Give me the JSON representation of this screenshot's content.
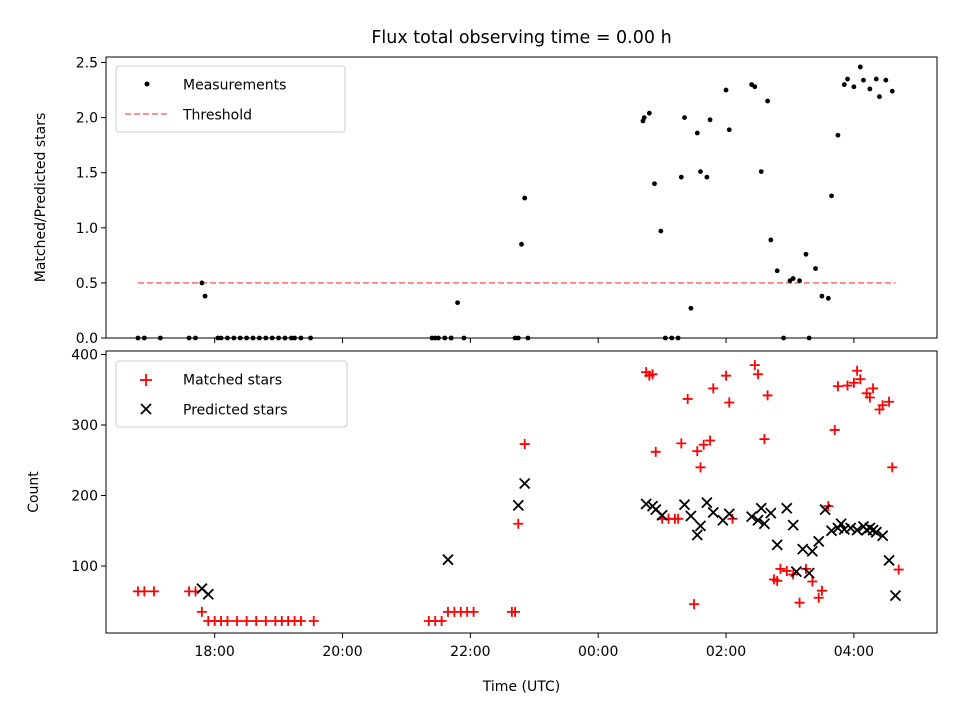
{
  "title": "Flux total observing time = 0.00 h",
  "chart_data": [
    {
      "type": "scatter",
      "ylabel": "Matched/Predicted stars",
      "x_unit": "hours since 00:00 UTC",
      "xlim": [
        -7.7,
        5.3
      ],
      "ylim": [
        0,
        2.55
      ],
      "yticks": [
        "0.0",
        "0.5",
        "1.0",
        "1.5",
        "2.0",
        "2.5"
      ],
      "legend": {
        "position": "top-left",
        "items": [
          {
            "label": "Measurements",
            "key": "measurements"
          },
          {
            "label": "Threshold",
            "key": "threshold"
          }
        ]
      },
      "threshold": {
        "y": 0.5,
        "x_range": [
          -7.2,
          4.65
        ],
        "color": "#ff8080"
      },
      "measurements": {
        "color": "#000000",
        "x": [
          -7.2,
          -7.1,
          -6.85,
          -6.4,
          -6.3,
          -6.2,
          -6.15,
          -5.95,
          -5.9,
          -5.8,
          -5.7,
          -5.6,
          -5.5,
          -5.4,
          -5.3,
          -5.2,
          -5.1,
          -5.0,
          -4.9,
          -4.8,
          -4.75,
          -4.65,
          -4.5,
          -2.6,
          -2.55,
          -2.5,
          -2.4,
          -2.3,
          -2.2,
          -2.1,
          -2.3,
          -1.3,
          -1.25,
          -1.2,
          -1.15,
          -1.1,
          0.7,
          0.72,
          0.8,
          0.88,
          0.98,
          1.05,
          1.15,
          1.25,
          1.3,
          1.35,
          1.45,
          1.55,
          1.6,
          1.7,
          1.75,
          2.0,
          2.05,
          2.4,
          2.45,
          2.55,
          2.65,
          2.7,
          2.8,
          2.9,
          3.0,
          3.05,
          3.15,
          3.25,
          3.3,
          3.4,
          3.5,
          3.6,
          3.65,
          3.75,
          3.85,
          3.9,
          4.0,
          4.1,
          4.15,
          4.25,
          4.35,
          4.4,
          4.5,
          4.6
        ],
        "y": [
          0,
          0,
          0,
          0,
          0,
          0.5,
          0.38,
          0,
          0,
          0,
          0,
          0,
          0,
          0,
          0,
          0,
          0,
          0,
          0,
          0,
          0,
          0,
          0,
          0,
          0,
          0,
          0,
          0,
          0.32,
          0,
          0,
          0,
          0,
          0.85,
          1.27,
          0,
          1.97,
          2.0,
          2.04,
          1.4,
          0.97,
          0,
          0,
          0,
          1.46,
          2.0,
          0.27,
          1.86,
          1.51,
          1.46,
          1.98,
          2.25,
          1.89,
          2.3,
          2.28,
          1.51,
          2.15,
          0.89,
          0.61,
          0,
          0.52,
          0.54,
          0.52,
          0.76,
          0,
          0.63,
          0.38,
          0.36,
          1.29,
          1.84,
          2.3,
          2.35,
          2.28,
          2.46,
          2.34,
          2.26,
          2.35,
          2.19,
          2.34,
          2.24
        ]
      }
    },
    {
      "type": "scatter",
      "xlabel": "Time (UTC)",
      "ylabel": "Count",
      "x_unit": "hours since 00:00 UTC",
      "xlim": [
        -7.7,
        5.3
      ],
      "ylim": [
        5,
        405
      ],
      "yticks": [
        "100",
        "200",
        "300",
        "400"
      ],
      "xticks": [
        "18:00",
        "20:00",
        "22:00",
        "00:00",
        "02:00",
        "04:00"
      ],
      "xtick_hours": [
        -6,
        -4,
        -2,
        0,
        2,
        4
      ],
      "legend": {
        "position": "top-left",
        "items": [
          {
            "label": "Matched stars",
            "key": "matched"
          },
          {
            "label": "Predicted stars",
            "key": "predicted"
          }
        ]
      },
      "matched": {
        "color": "#ff0000",
        "x": [
          -7.2,
          -7.1,
          -6.95,
          -6.4,
          -6.3,
          -6.2,
          -6.1,
          -6.0,
          -5.9,
          -5.8,
          -5.65,
          -5.5,
          -5.35,
          -5.2,
          -5.05,
          -4.95,
          -4.85,
          -4.75,
          -4.65,
          -4.45,
          -2.65,
          -2.55,
          -2.45,
          -2.35,
          -2.25,
          -2.15,
          -2.05,
          -1.95,
          -1.35,
          -1.3,
          -1.25,
          -1.15,
          0.75,
          0.8,
          0.85,
          0.9,
          1.0,
          1.1,
          1.2,
          1.25,
          1.3,
          1.4,
          1.5,
          1.55,
          1.6,
          1.65,
          1.75,
          1.8,
          2.0,
          2.05,
          2.1,
          2.45,
          2.5,
          2.6,
          2.65,
          2.75,
          2.8,
          2.85,
          2.95,
          3.05,
          3.15,
          3.25,
          3.35,
          3.45,
          3.5,
          3.6,
          3.7,
          3.75,
          3.9,
          4.0,
          4.05,
          4.1,
          4.2,
          4.25,
          4.3,
          4.4,
          4.45,
          4.55,
          4.6,
          4.7
        ],
        "y": [
          64,
          64,
          64,
          64,
          64,
          35,
          22,
          22,
          22,
          22,
          22,
          22,
          22,
          22,
          22,
          22,
          22,
          22,
          22,
          22,
          22,
          22,
          22,
          35,
          35,
          35,
          35,
          35,
          35,
          35,
          160,
          273,
          375,
          370,
          372,
          262,
          167,
          167,
          167,
          167,
          274,
          337,
          46,
          263,
          240,
          272,
          278,
          352,
          370,
          332,
          167,
          385,
          372,
          280,
          342,
          81,
          79,
          96,
          93,
          88,
          48,
          96,
          78,
          55,
          65,
          185,
          293,
          355,
          356,
          360,
          377,
          365,
          345,
          339,
          352,
          322,
          328,
          333,
          240,
          95
        ]
      },
      "predicted": {
        "color": "#000000",
        "x": [
          -6.2,
          -6.1,
          -2.35,
          -1.25,
          -1.15,
          0.75,
          0.85,
          0.9,
          1.0,
          1.35,
          1.45,
          1.55,
          1.6,
          1.7,
          1.8,
          1.95,
          2.05,
          2.4,
          2.5,
          2.55,
          2.6,
          2.7,
          2.8,
          2.95,
          3.05,
          3.1,
          3.2,
          3.3,
          3.35,
          3.45,
          3.55,
          3.65,
          3.75,
          3.8,
          3.85,
          3.95,
          4.05,
          4.15,
          4.2,
          4.25,
          4.3,
          4.35,
          4.45,
          4.55,
          4.65
        ],
        "y": [
          68,
          60,
          109,
          186,
          217,
          188,
          185,
          180,
          172,
          187,
          171,
          144,
          157,
          190,
          176,
          165,
          174,
          170,
          165,
          182,
          160,
          175,
          130,
          182,
          158,
          92,
          124,
          90,
          121,
          135,
          180,
          150,
          154,
          160,
          152,
          154,
          151,
          156,
          151,
          154,
          151,
          148,
          143,
          108,
          58
        ]
      }
    }
  ]
}
